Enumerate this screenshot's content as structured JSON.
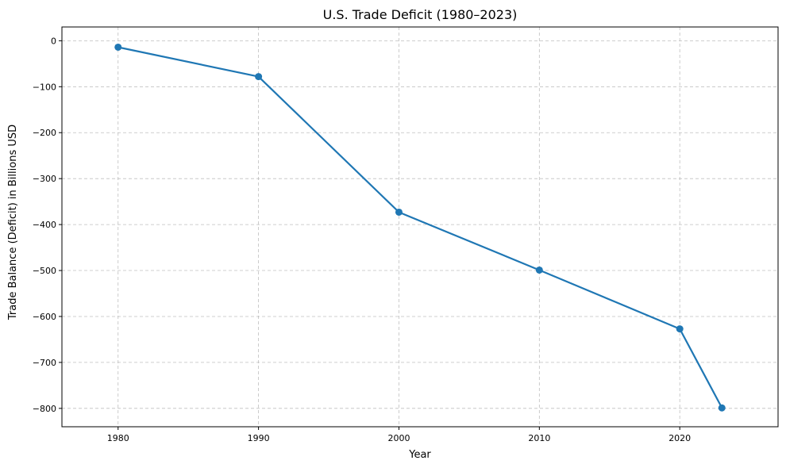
{
  "chart_data": {
    "type": "line",
    "title": "U.S. Trade Deficit (1980–2023)",
    "xlabel": "Year",
    "ylabel": "Trade Balance (Deficit) in Billions USD",
    "xlim": [
      1976,
      2027
    ],
    "ylim": [
      -840,
      30
    ],
    "xticks": [
      1980,
      1990,
      2000,
      2010,
      2020
    ],
    "xtick_labels": [
      "1980",
      "1990",
      "2000",
      "2010",
      "2020"
    ],
    "yticks": [
      0,
      -100,
      -200,
      -300,
      -400,
      -500,
      -600,
      -700,
      -800
    ],
    "ytick_labels": [
      "0",
      "−100",
      "−200",
      "−300",
      "−400",
      "−500",
      "−600",
      "−700",
      "−800"
    ],
    "grid": true,
    "grid_style": "dashed",
    "series": [
      {
        "color": "#1f77b4",
        "marker": "circle",
        "x": [
          1980,
          1990,
          2000,
          2010,
          2020,
          2023
        ],
        "y": [
          -14,
          -78,
          -373,
          -499,
          -627,
          -799
        ]
      }
    ]
  }
}
